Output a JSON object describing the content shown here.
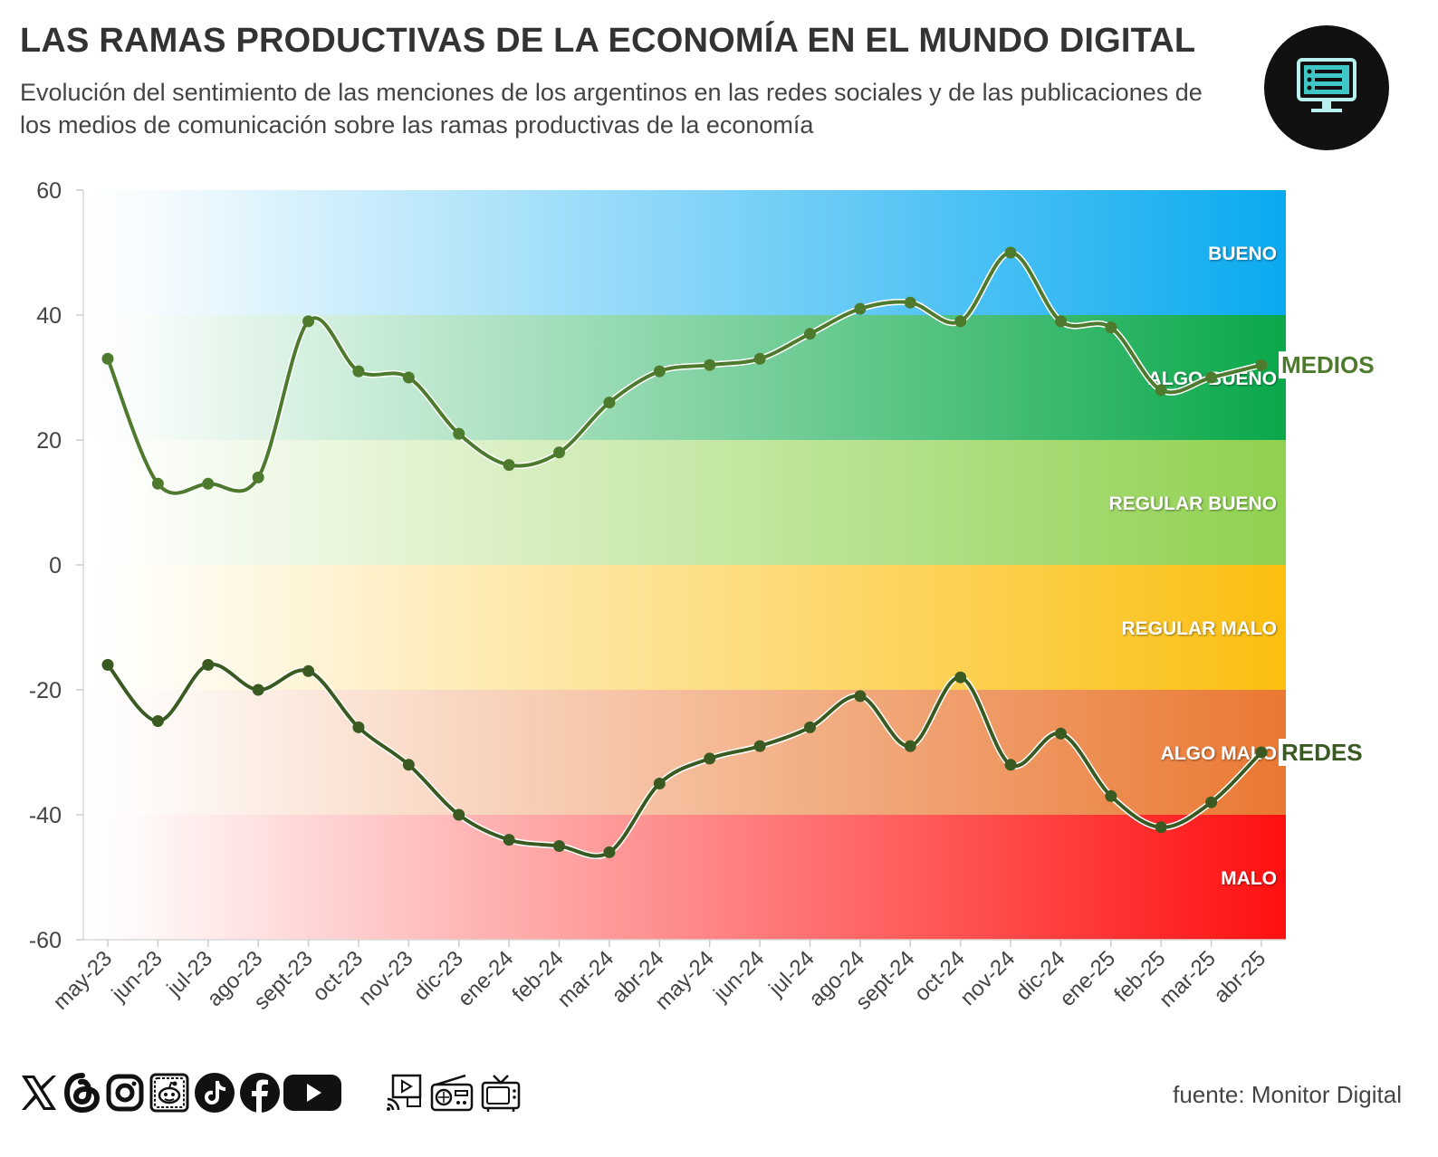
{
  "header": {
    "title": "LAS RAMAS PRODUCTIVAS DE LA ECONOMÍA EN EL MUNDO DIGITAL",
    "subtitle": "Evolución del sentimiento de las menciones de los argentinos en las redes sociales y de las publicaciones de los medios de comunicación sobre las ramas productivas de la economía"
  },
  "logo": {
    "icon": "monitor-dashboard-icon"
  },
  "footer": {
    "source": "fuente: Monitor Digital",
    "icons": [
      "x-icon",
      "threads-icon",
      "instagram-icon",
      "reddit-icon",
      "tiktok-icon",
      "facebook-icon",
      "youtube-icon",
      "digital-media-icon",
      "radio-icon",
      "tv-icon"
    ]
  },
  "chart_data": {
    "type": "line",
    "categories": [
      "may-23",
      "jun-23",
      "jul-23",
      "ago-23",
      "sept-23",
      "oct-23",
      "nov-23",
      "dic-23",
      "ene-24",
      "feb-24",
      "mar-24",
      "abr-24",
      "may-24",
      "jun-24",
      "jul-24",
      "ago-24",
      "sept-24",
      "oct-24",
      "nov-24",
      "dic-24",
      "ene-25",
      "feb-25",
      "mar-25",
      "abr-25"
    ],
    "series": [
      {
        "name": "MEDIOS",
        "color": "#4e7a2e",
        "values": [
          33,
          13,
          13,
          14,
          39,
          31,
          30,
          21,
          16,
          18,
          26,
          31,
          32,
          33,
          37,
          41,
          42,
          39,
          50,
          39,
          38,
          28,
          30,
          32
        ]
      },
      {
        "name": "REDES",
        "color": "#3a5a22",
        "values": [
          -16,
          -25,
          -16,
          -20,
          -17,
          -26,
          -32,
          -40,
          -44,
          -45,
          -46,
          -35,
          -31,
          -29,
          -26,
          -21,
          -29,
          -18,
          -32,
          -27,
          -37,
          -42,
          -38,
          -30
        ]
      }
    ],
    "ylim": [
      -60,
      60
    ],
    "yticks": [
      60,
      40,
      20,
      0,
      -20,
      -40,
      -60
    ],
    "bands": [
      {
        "label": "BUENO",
        "from": 40,
        "to": 60,
        "color": "#0aaaf0"
      },
      {
        "label": "ALGO BUENO",
        "from": 20,
        "to": 40,
        "color": "#0aa84a"
      },
      {
        "label": "REGULAR BUENO",
        "from": 0,
        "to": 20,
        "color": "#8fd14f"
      },
      {
        "label": "REGULAR MALO",
        "from": -20,
        "to": 0,
        "color": "#fbbf10"
      },
      {
        "label": "ALGO MALO",
        "from": -40,
        "to": -20,
        "color": "#ea7832"
      },
      {
        "label": "MALO",
        "from": -60,
        "to": -40,
        "color": "#ff1010"
      }
    ],
    "grid": false
  }
}
